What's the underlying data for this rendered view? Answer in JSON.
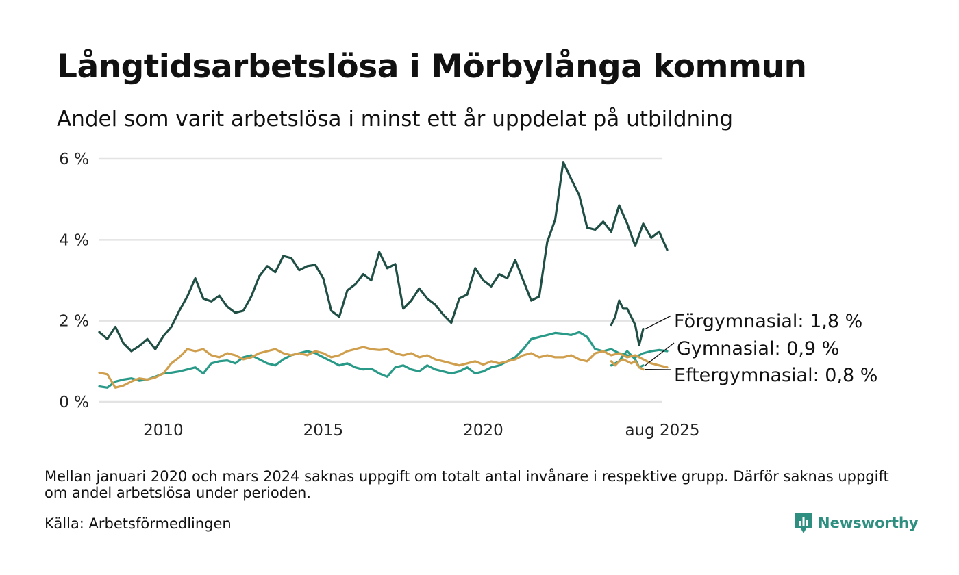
{
  "title": "Långtidsarbetslösa i Mörbylånga kommun",
  "subtitle": "Andel som varit arbetslösa i minst ett år uppdelat på utbildning",
  "note": "Mellan januari 2020 och mars 2024 saknas uppgift om totalt antal invånare i respektive grupp. Därför saknas uppgift om andel arbetslösa under perioden.",
  "source": "Källa: Arbetsförmedlingen",
  "brand": "Newsworthy",
  "colors": {
    "forgymnasial": "#1f4e45",
    "gymnasial": "#2a9a88",
    "eftergymnasial": "#cf9f4e",
    "grid": "#e3e3e3",
    "brand": "#2e8f81"
  },
  "chart_data": {
    "type": "line",
    "y_unit": "%",
    "ylim": [
      0,
      6
    ],
    "y_ticks": [
      0,
      2,
      4,
      6
    ],
    "y_tick_labels": [
      "0 %",
      "2 %",
      "4 %",
      "6 %"
    ],
    "x_ticks": [
      2010,
      2015,
      2020,
      2025.6
    ],
    "x_tick_labels": [
      "2010",
      "2015",
      "2020",
      "aug 2025"
    ],
    "grid": "horizontal",
    "legend": "end-labels",
    "series": [
      {
        "name": "Förgymnasial",
        "end_label": "Förgymnasial: 1,8 %",
        "color": "#1f4e45",
        "segments": [
          {
            "start": 2008.0,
            "step": 0.25,
            "values": [
              1.72,
              1.55,
              1.85,
              1.45,
              1.25,
              1.38,
              1.55,
              1.3,
              1.62,
              1.85,
              2.25,
              2.6,
              3.05,
              2.55,
              2.48,
              2.62,
              2.35,
              2.2,
              2.25,
              2.6,
              3.1,
              3.35,
              3.2,
              3.6,
              3.55,
              3.25,
              3.35,
              3.38,
              3.05,
              2.25,
              2.1,
              2.75,
              2.9,
              3.15,
              3.0,
              3.7,
              3.3,
              3.4,
              2.3,
              2.5,
              2.8,
              2.55,
              2.4,
              2.15,
              1.95,
              2.55,
              2.65,
              3.3,
              3.0,
              2.85,
              3.15,
              3.05,
              3.5,
              3.0,
              2.5,
              2.6,
              3.95,
              4.5,
              5.92,
              5.5,
              5.1,
              4.3,
              4.25,
              4.45,
              4.2,
              4.85,
              4.4,
              3.85,
              4.4,
              4.05,
              4.2,
              3.75
            ]
          },
          {
            "start": 2024.0,
            "step": 0.125,
            "values": [
              1.9,
              2.1,
              2.5,
              2.3,
              2.3,
              2.1,
              1.9,
              1.4,
              1.8
            ]
          }
        ]
      },
      {
        "name": "Gymnasial",
        "end_label": "Gymnasial: 0,9 %",
        "color": "#2a9a88",
        "segments": [
          {
            "start": 2008.0,
            "step": 0.25,
            "values": [
              0.38,
              0.35,
              0.5,
              0.55,
              0.58,
              0.52,
              0.55,
              0.62,
              0.7,
              0.72,
              0.75,
              0.8,
              0.85,
              0.7,
              0.95,
              1.0,
              1.02,
              0.95,
              1.1,
              1.15,
              1.05,
              0.95,
              0.9,
              1.05,
              1.15,
              1.2,
              1.25,
              1.2,
              1.1,
              1.0,
              0.9,
              0.95,
              0.85,
              0.8,
              0.82,
              0.7,
              0.62,
              0.85,
              0.9,
              0.8,
              0.75,
              0.9,
              0.8,
              0.75,
              0.7,
              0.75,
              0.85,
              0.7,
              0.75,
              0.85,
              0.9,
              1.0,
              1.1,
              1.3,
              1.55,
              1.6,
              1.65,
              1.7,
              1.68,
              1.65,
              1.72,
              1.6,
              1.3,
              1.25,
              1.3,
              1.2,
              1.15,
              1.1,
              1.2,
              1.25,
              1.28,
              1.25
            ]
          },
          {
            "start": 2024.0,
            "step": 0.125,
            "values": [
              0.9,
              0.95,
              1.0,
              1.15,
              1.25,
              1.15,
              1.05,
              0.85,
              0.9
            ]
          }
        ]
      },
      {
        "name": "Eftergymnasial",
        "end_label": "Eftergymnasial: 0,8 %",
        "color": "#cf9f4e",
        "segments": [
          {
            "start": 2008.0,
            "step": 0.25,
            "values": [
              0.72,
              0.68,
              0.35,
              0.4,
              0.5,
              0.58,
              0.55,
              0.6,
              0.7,
              0.95,
              1.1,
              1.3,
              1.25,
              1.3,
              1.15,
              1.1,
              1.2,
              1.15,
              1.05,
              1.1,
              1.2,
              1.25,
              1.3,
              1.2,
              1.15,
              1.2,
              1.15,
              1.25,
              1.2,
              1.1,
              1.15,
              1.25,
              1.3,
              1.35,
              1.3,
              1.28,
              1.3,
              1.2,
              1.15,
              1.2,
              1.1,
              1.15,
              1.05,
              1.0,
              0.95,
              0.9,
              0.95,
              1.0,
              0.92,
              1.0,
              0.95,
              1.0,
              1.05,
              1.15,
              1.2,
              1.1,
              1.15,
              1.1,
              1.1,
              1.15,
              1.05,
              1.0,
              1.2,
              1.25,
              1.15,
              1.2,
              1.1,
              1.15,
              1.05,
              0.95,
              0.9,
              0.85
            ]
          },
          {
            "start": 2024.0,
            "step": 0.125,
            "values": [
              1.0,
              0.9,
              1.0,
              1.05,
              1.0,
              0.95,
              1.0,
              0.85,
              0.8
            ]
          }
        ]
      }
    ]
  }
}
